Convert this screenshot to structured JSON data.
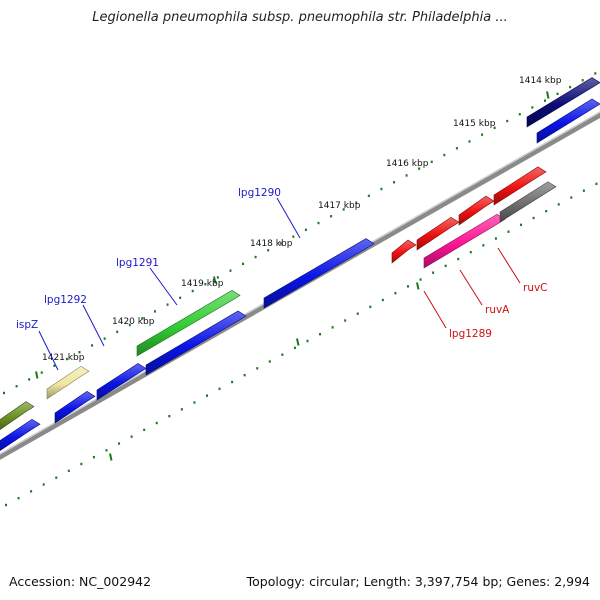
{
  "title": "Legionella pneumophila subsp. pneumophila str. Philadelphia ...",
  "footer": {
    "accession": "Accession: NC_002942",
    "topology": "Topology: circular; Length: 3,397,754 bp; Genes: 2,994"
  },
  "colors": {
    "backbone": "#8a8a8a",
    "tick": "#1b7a1b",
    "gene_blue": "#0a14e6",
    "gene_navy": "#0b0b78",
    "gene_green": "#33cc33",
    "gene_olive": "#6b8e23",
    "gene_khaki": "#eee8a0",
    "gene_red": "#ee1111",
    "gene_pink": "#ff1493",
    "gene_gray": "#6e6e6e",
    "label_blue": "#1a1acc",
    "label_red": "#cc1111"
  },
  "ticks": [
    {
      "label": "1414 kbp"
    },
    {
      "label": "1415 kbp"
    },
    {
      "label": "1416 kbp"
    },
    {
      "label": "1417 kbp"
    },
    {
      "label": "1418 kbp"
    },
    {
      "label": "1419 kbp"
    },
    {
      "label": "1420 kbp"
    },
    {
      "label": "1421 kbp"
    }
  ],
  "genes": [
    {
      "name": "lpg1290",
      "label_color": "blue"
    },
    {
      "name": "lpg1291",
      "label_color": "blue"
    },
    {
      "name": "lpg1292",
      "label_color": "blue"
    },
    {
      "name": "ispZ",
      "label_color": "blue"
    },
    {
      "name": "ruvC",
      "label_color": "red"
    },
    {
      "name": "ruvA",
      "label_color": "red"
    },
    {
      "name": "lpg1289",
      "label_color": "red"
    }
  ]
}
